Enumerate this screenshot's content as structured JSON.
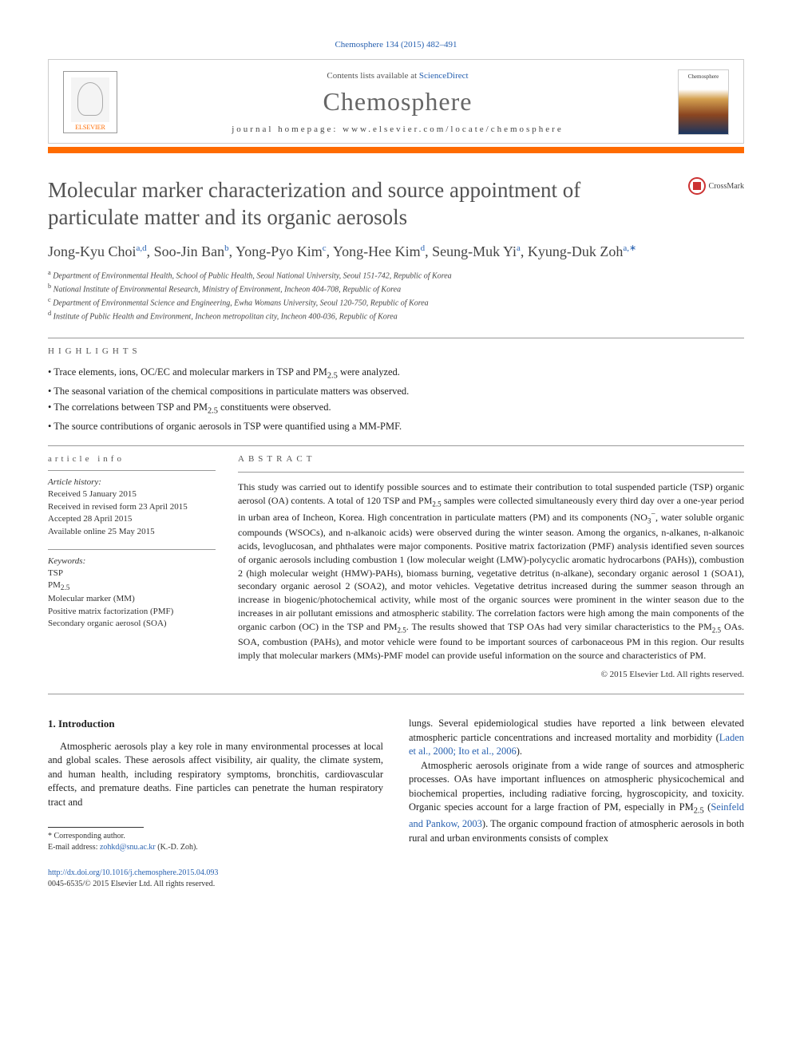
{
  "citation": "Chemosphere 134 (2015) 482–491",
  "header": {
    "contents_prefix": "Contents lists available at ",
    "contents_link": "ScienceDirect",
    "journal": "Chemosphere",
    "homepage_prefix": "journal homepage: ",
    "homepage_url": "www.elsevier.com/locate/chemosphere",
    "publisher_label": "ELSEVIER",
    "cover_label": "Chemosphere"
  },
  "title": "Molecular marker characterization and source appointment of particulate matter and its organic aerosols",
  "crossmark": "CrossMark",
  "authors_html": "Jong-Kyu Choi|a,d|, Soo-Jin Ban|b|, Yong-Pyo Kim|c|, Yong-Hee Kim|d|, Seung-Muk Yi|a|, Kyung-Duk Zoh|a,*|",
  "affiliations": [
    {
      "sup": "a",
      "text": "Department of Environmental Health, School of Public Health, Seoul National University, Seoul 151-742, Republic of Korea"
    },
    {
      "sup": "b",
      "text": "National Institute of Environmental Research, Ministry of Environment, Incheon 404-708, Republic of Korea"
    },
    {
      "sup": "c",
      "text": "Department of Environmental Science and Engineering, Ewha Womans University, Seoul 120-750, Republic of Korea"
    },
    {
      "sup": "d",
      "text": "Institute of Public Health and Environment, Incheon metropolitan city, Incheon 400-036, Republic of Korea"
    }
  ],
  "highlights_label": "highlights",
  "highlights": [
    "Trace elements, ions, OC/EC and molecular markers in TSP and PM2.5 were analyzed.",
    "The seasonal variation of the chemical compositions in particulate matters was observed.",
    "The correlations between TSP and PM2.5 constituents were observed.",
    "The source contributions of organic aerosols in TSP were quantified using a MM-PMF."
  ],
  "article_info_label": "article info",
  "history_label": "Article history:",
  "history": [
    "Received 5 January 2015",
    "Received in revised form 23 April 2015",
    "Accepted 28 April 2015",
    "Available online 25 May 2015"
  ],
  "keywords_label": "Keywords:",
  "keywords": [
    "TSP",
    "PM2.5",
    "Molecular marker (MM)",
    "Positive matrix factorization (PMF)",
    "Secondary organic aerosol (SOA)"
  ],
  "abstract_label": "abstract",
  "abstract": "This study was carried out to identify possible sources and to estimate their contribution to total suspended particle (TSP) organic aerosol (OA) contents. A total of 120 TSP and PM2.5 samples were collected simultaneously every third day over a one-year period in urban area of Incheon, Korea. High concentration in particulate matters (PM) and its components (NO3−, water soluble organic compounds (WSOCs), and n-alkanoic acids) were observed during the winter season. Among the organics, n-alkanes, n-alkanoic acids, levoglucosan, and phthalates were major components. Positive matrix factorization (PMF) analysis identified seven sources of organic aerosols including combustion 1 (low molecular weight (LMW)-polycyclic aromatic hydrocarbons (PAHs)), combustion 2 (high molecular weight (HMW)-PAHs), biomass burning, vegetative detritus (n-alkane), secondary organic aerosol 1 (SOA1), secondary organic aerosol 2 (SOA2), and motor vehicles. Vegetative detritus increased during the summer season through an increase in biogenic/photochemical activity, while most of the organic sources were prominent in the winter season due to the increases in air pollutant emissions and atmospheric stability. The correlation factors were high among the main components of the organic carbon (OC) in the TSP and PM2.5. The results showed that TSP OAs had very similar characteristics to the PM2.5 OAs. SOA, combustion (PAHs), and motor vehicle were found to be important sources of carbonaceous PM in this region. Our results imply that molecular markers (MMs)-PMF model can provide useful information on the source and characteristics of PM.",
  "copyright": "© 2015 Elsevier Ltd. All rights reserved.",
  "body": {
    "section_heading": "1. Introduction",
    "left_paragraph": "Atmospheric aerosols play a key role in many environmental processes at local and global scales. These aerosols affect visibility, air quality, the climate system, and human health, including respiratory symptoms, bronchitis, cardiovascular effects, and premature deaths. Fine particles can penetrate the human respiratory tract and",
    "right_p1": "lungs. Several epidemiological studies have reported a link between elevated atmospheric particle concentrations and increased mortality and morbidity (",
    "right_p1_cite": "Laden et al., 2000; Ito et al., 2006",
    "right_p1_end": ").",
    "right_p2a": "Atmospheric aerosols originate from a wide range of sources and atmospheric processes. OAs have important influences on atmospheric physicochemical and biochemical properties, including radiative forcing, hygroscopicity, and toxicity. Organic species account for a large fraction of PM, especially in PM2.5 (",
    "right_p2_cite": "Seinfeld and Pankow, 2003",
    "right_p2b": "). The organic compound fraction of atmospheric aerosols in both rural and urban environments consists of complex"
  },
  "footnotes": {
    "corr_label": "* Corresponding author.",
    "email_label": "E-mail address: ",
    "email": "zohkd@snu.ac.kr",
    "email_suffix": " (K.-D. Zoh)."
  },
  "doi": {
    "url": "http://dx.doi.org/10.1016/j.chemosphere.2015.04.093",
    "issn_line": "0045-6535/© 2015 Elsevier Ltd. All rights reserved."
  },
  "colors": {
    "accent_orange": "#ff6b00",
    "link_blue": "#2861b0",
    "title_gray": "#525252"
  }
}
